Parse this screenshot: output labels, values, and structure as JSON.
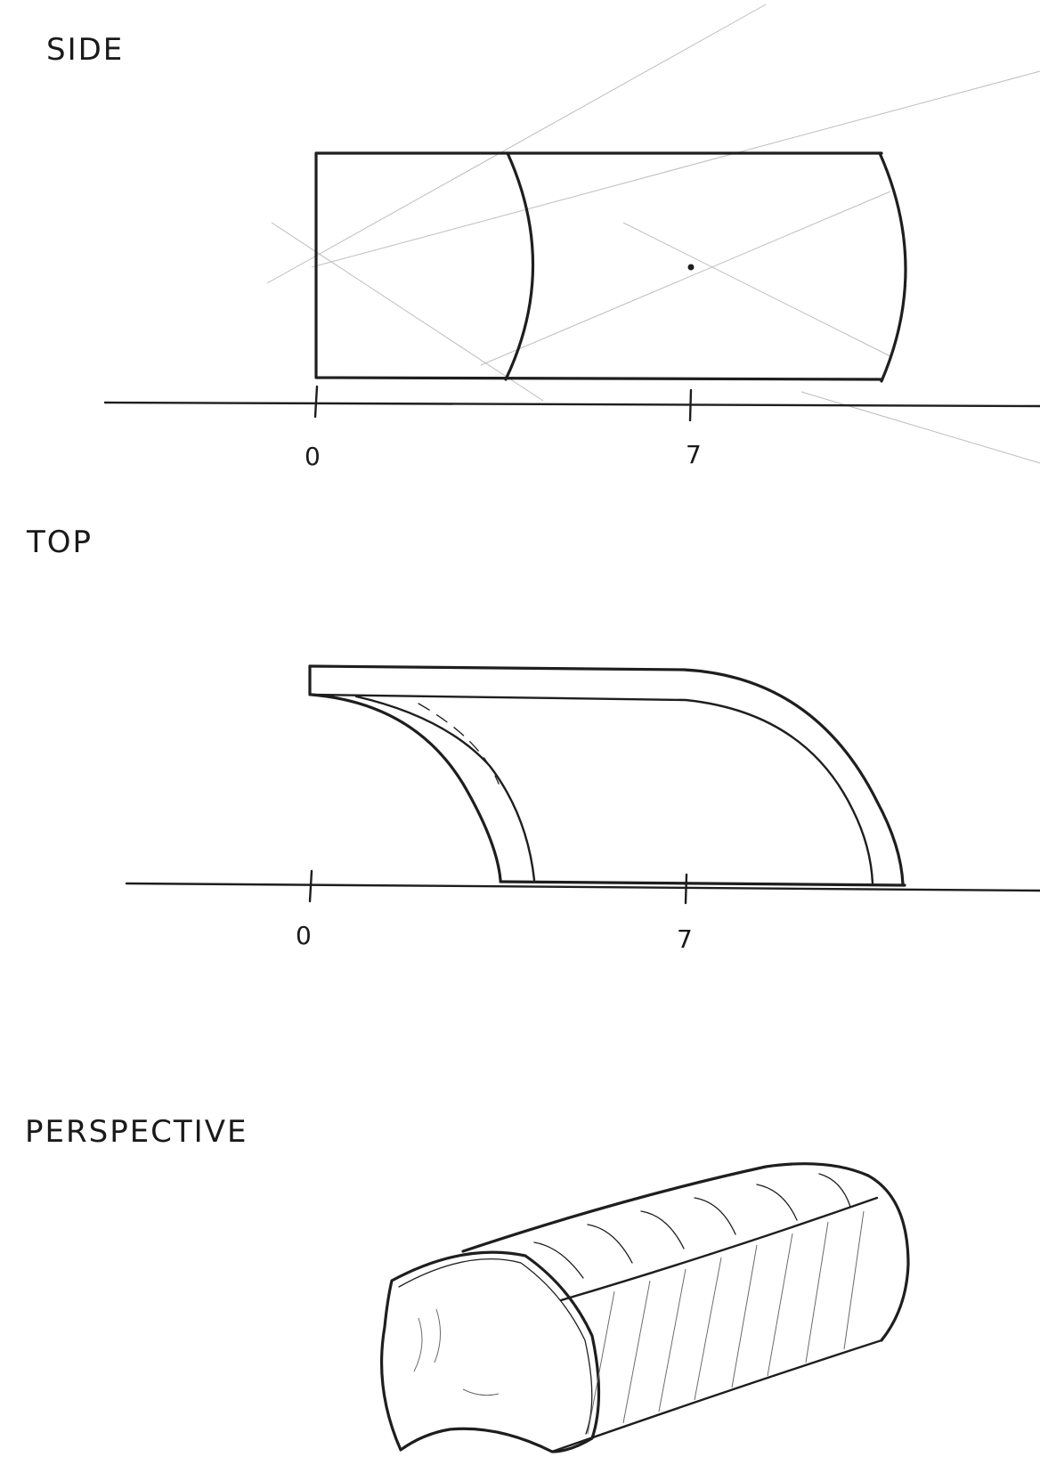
{
  "views": {
    "side": {
      "label": "SIDE",
      "scale_labels": [
        "0",
        "7"
      ]
    },
    "top": {
      "label": "TOP",
      "scale_labels": [
        "0",
        "7"
      ]
    },
    "perspective": {
      "label": "PERSPECTIVE"
    }
  }
}
